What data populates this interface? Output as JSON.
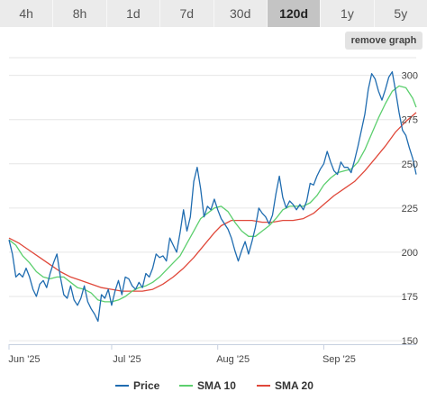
{
  "tabs": {
    "items": [
      "4h",
      "8h",
      "1d",
      "7d",
      "30d",
      "120d",
      "1y",
      "5y"
    ],
    "active_index": 5
  },
  "toolbar": {
    "remove_graph_label": "remove graph"
  },
  "colors": {
    "price": "#1f6cb0",
    "sma10": "#5ccf6e",
    "sma20": "#e0483a",
    "grid": "#e6e6e6",
    "axis": "#c7d0e0"
  },
  "chart_data": {
    "type": "line",
    "x_tick_labels": [
      "Jun '25",
      "Jul '25",
      "Aug '25",
      "Sep '25"
    ],
    "x_tick_dates": [
      "2025-06-01",
      "2025-07-01",
      "2025-08-01",
      "2025-09-01"
    ],
    "y_ticks": [
      150,
      175,
      200,
      225,
      250,
      275,
      300
    ],
    "ylim": [
      148,
      310
    ],
    "xlim": [
      "2025-06-01",
      "2025-09-28"
    ],
    "grid": "horizontal",
    "legend": "bottom",
    "series": [
      {
        "name": "Price",
        "color": "#1f6cb0",
        "points": [
          [
            "2025-06-01",
            207
          ],
          [
            "2025-06-02",
            199
          ],
          [
            "2025-06-03",
            186
          ],
          [
            "2025-06-04",
            188
          ],
          [
            "2025-06-05",
            186
          ],
          [
            "2025-06-06",
            191
          ],
          [
            "2025-06-07",
            186
          ],
          [
            "2025-06-08",
            179
          ],
          [
            "2025-06-09",
            175
          ],
          [
            "2025-06-10",
            182
          ],
          [
            "2025-06-11",
            184
          ],
          [
            "2025-06-12",
            180
          ],
          [
            "2025-06-13",
            188
          ],
          [
            "2025-06-14",
            194
          ],
          [
            "2025-06-15",
            199
          ],
          [
            "2025-06-16",
            186
          ],
          [
            "2025-06-17",
            176
          ],
          [
            "2025-06-18",
            174
          ],
          [
            "2025-06-19",
            181
          ],
          [
            "2025-06-20",
            173
          ],
          [
            "2025-06-21",
            170
          ],
          [
            "2025-06-22",
            174
          ],
          [
            "2025-06-23",
            181
          ],
          [
            "2025-06-24",
            172
          ],
          [
            "2025-06-25",
            168
          ],
          [
            "2025-06-26",
            165
          ],
          [
            "2025-06-27",
            161
          ],
          [
            "2025-06-28",
            176
          ],
          [
            "2025-06-29",
            174
          ],
          [
            "2025-06-30",
            179
          ],
          [
            "2025-07-01",
            170
          ],
          [
            "2025-07-02",
            178
          ],
          [
            "2025-07-03",
            184
          ],
          [
            "2025-07-04",
            176
          ],
          [
            "2025-07-05",
            186
          ],
          [
            "2025-07-06",
            185
          ],
          [
            "2025-07-07",
            181
          ],
          [
            "2025-07-08",
            179
          ],
          [
            "2025-07-09",
            183
          ],
          [
            "2025-07-10",
            180
          ],
          [
            "2025-07-11",
            188
          ],
          [
            "2025-07-12",
            186
          ],
          [
            "2025-07-13",
            191
          ],
          [
            "2025-07-14",
            199
          ],
          [
            "2025-07-15",
            197
          ],
          [
            "2025-07-16",
            198
          ],
          [
            "2025-07-17",
            195
          ],
          [
            "2025-07-18",
            208
          ],
          [
            "2025-07-19",
            204
          ],
          [
            "2025-07-20",
            200
          ],
          [
            "2025-07-21",
            211
          ],
          [
            "2025-07-22",
            224
          ],
          [
            "2025-07-23",
            212
          ],
          [
            "2025-07-24",
            220
          ],
          [
            "2025-07-25",
            240
          ],
          [
            "2025-07-26",
            248
          ],
          [
            "2025-07-27",
            236
          ],
          [
            "2025-07-28",
            220
          ],
          [
            "2025-07-29",
            226
          ],
          [
            "2025-07-30",
            224
          ],
          [
            "2025-07-31",
            230
          ],
          [
            "2025-08-01",
            224
          ],
          [
            "2025-08-02",
            219
          ],
          [
            "2025-08-03",
            216
          ],
          [
            "2025-08-04",
            213
          ],
          [
            "2025-08-05",
            208
          ],
          [
            "2025-08-06",
            201
          ],
          [
            "2025-08-07",
            195
          ],
          [
            "2025-08-08",
            201
          ],
          [
            "2025-08-09",
            206
          ],
          [
            "2025-08-10",
            199
          ],
          [
            "2025-08-11",
            206
          ],
          [
            "2025-08-12",
            214
          ],
          [
            "2025-08-13",
            225
          ],
          [
            "2025-08-14",
            222
          ],
          [
            "2025-08-15",
            220
          ],
          [
            "2025-08-16",
            216
          ],
          [
            "2025-08-17",
            221
          ],
          [
            "2025-08-18",
            233
          ],
          [
            "2025-08-19",
            243
          ],
          [
            "2025-08-20",
            231
          ],
          [
            "2025-08-21",
            225
          ],
          [
            "2025-08-22",
            229
          ],
          [
            "2025-08-23",
            227
          ],
          [
            "2025-08-24",
            224
          ],
          [
            "2025-08-25",
            227
          ],
          [
            "2025-08-26",
            224
          ],
          [
            "2025-08-27",
            229
          ],
          [
            "2025-08-28",
            239
          ],
          [
            "2025-08-29",
            238
          ],
          [
            "2025-08-30",
            243
          ],
          [
            "2025-08-31",
            247
          ],
          [
            "2025-09-01",
            250
          ],
          [
            "2025-09-02",
            257
          ],
          [
            "2025-09-03",
            251
          ],
          [
            "2025-09-04",
            246
          ],
          [
            "2025-09-05",
            244
          ],
          [
            "2025-09-06",
            251
          ],
          [
            "2025-09-07",
            248
          ],
          [
            "2025-09-08",
            248
          ],
          [
            "2025-09-09",
            245
          ],
          [
            "2025-09-10",
            252
          ],
          [
            "2025-09-11",
            260
          ],
          [
            "2025-09-12",
            269
          ],
          [
            "2025-09-13",
            278
          ],
          [
            "2025-09-14",
            292
          ],
          [
            "2025-09-15",
            301
          ],
          [
            "2025-09-16",
            298
          ],
          [
            "2025-09-17",
            291
          ],
          [
            "2025-09-18",
            286
          ],
          [
            "2025-09-19",
            292
          ],
          [
            "2025-09-20",
            299
          ],
          [
            "2025-09-21",
            302
          ],
          [
            "2025-09-22",
            291
          ],
          [
            "2025-09-23",
            279
          ],
          [
            "2025-09-24",
            269
          ],
          [
            "2025-09-25",
            266
          ],
          [
            "2025-09-26",
            259
          ],
          [
            "2025-09-27",
            253
          ],
          [
            "2025-09-28",
            244
          ]
        ]
      },
      {
        "name": "SMA 10",
        "color": "#5ccf6e",
        "points": [
          [
            "2025-06-01",
            207
          ],
          [
            "2025-06-03",
            204
          ],
          [
            "2025-06-05",
            198
          ],
          [
            "2025-06-07",
            194
          ],
          [
            "2025-06-09",
            189
          ],
          [
            "2025-06-11",
            186
          ],
          [
            "2025-06-13",
            185
          ],
          [
            "2025-06-15",
            186
          ],
          [
            "2025-06-17",
            186
          ],
          [
            "2025-06-19",
            183
          ],
          [
            "2025-06-21",
            180
          ],
          [
            "2025-06-23",
            179
          ],
          [
            "2025-06-25",
            177
          ],
          [
            "2025-06-27",
            173
          ],
          [
            "2025-06-29",
            172
          ],
          [
            "2025-07-01",
            172
          ],
          [
            "2025-07-03",
            173
          ],
          [
            "2025-07-05",
            175
          ],
          [
            "2025-07-07",
            178
          ],
          [
            "2025-07-09",
            180
          ],
          [
            "2025-07-11",
            181
          ],
          [
            "2025-07-13",
            183
          ],
          [
            "2025-07-15",
            186
          ],
          [
            "2025-07-17",
            190
          ],
          [
            "2025-07-19",
            194
          ],
          [
            "2025-07-21",
            198
          ],
          [
            "2025-07-23",
            205
          ],
          [
            "2025-07-25",
            212
          ],
          [
            "2025-07-27",
            219
          ],
          [
            "2025-07-29",
            222
          ],
          [
            "2025-07-31",
            225
          ],
          [
            "2025-08-02",
            226
          ],
          [
            "2025-08-04",
            223
          ],
          [
            "2025-08-06",
            217
          ],
          [
            "2025-08-08",
            212
          ],
          [
            "2025-08-10",
            209
          ],
          [
            "2025-08-12",
            209
          ],
          [
            "2025-08-14",
            212
          ],
          [
            "2025-08-16",
            215
          ],
          [
            "2025-08-18",
            219
          ],
          [
            "2025-08-20",
            224
          ],
          [
            "2025-08-22",
            226
          ],
          [
            "2025-08-24",
            226
          ],
          [
            "2025-08-26",
            226
          ],
          [
            "2025-08-28",
            228
          ],
          [
            "2025-08-30",
            232
          ],
          [
            "2025-09-01",
            238
          ],
          [
            "2025-09-03",
            242
          ],
          [
            "2025-09-05",
            245
          ],
          [
            "2025-09-07",
            246
          ],
          [
            "2025-09-09",
            247
          ],
          [
            "2025-09-11",
            251
          ],
          [
            "2025-09-13",
            258
          ],
          [
            "2025-09-15",
            267
          ],
          [
            "2025-09-17",
            276
          ],
          [
            "2025-09-19",
            284
          ],
          [
            "2025-09-21",
            291
          ],
          [
            "2025-09-23",
            294
          ],
          [
            "2025-09-25",
            293
          ],
          [
            "2025-09-27",
            287
          ],
          [
            "2025-09-28",
            282
          ]
        ]
      },
      {
        "name": "SMA 20",
        "color": "#e0483a",
        "points": [
          [
            "2025-06-01",
            208
          ],
          [
            "2025-06-04",
            205
          ],
          [
            "2025-06-07",
            201
          ],
          [
            "2025-06-10",
            197
          ],
          [
            "2025-06-13",
            193
          ],
          [
            "2025-06-16",
            189
          ],
          [
            "2025-06-19",
            186
          ],
          [
            "2025-06-22",
            184
          ],
          [
            "2025-06-25",
            182
          ],
          [
            "2025-06-28",
            180
          ],
          [
            "2025-07-01",
            179
          ],
          [
            "2025-07-04",
            178
          ],
          [
            "2025-07-07",
            178
          ],
          [
            "2025-07-10",
            178
          ],
          [
            "2025-07-13",
            179
          ],
          [
            "2025-07-16",
            182
          ],
          [
            "2025-07-19",
            186
          ],
          [
            "2025-07-22",
            191
          ],
          [
            "2025-07-25",
            197
          ],
          [
            "2025-07-28",
            204
          ],
          [
            "2025-07-31",
            211
          ],
          [
            "2025-08-02",
            215
          ],
          [
            "2025-08-05",
            218
          ],
          [
            "2025-08-08",
            218
          ],
          [
            "2025-08-11",
            218
          ],
          [
            "2025-08-14",
            217
          ],
          [
            "2025-08-17",
            217
          ],
          [
            "2025-08-20",
            218
          ],
          [
            "2025-08-23",
            218
          ],
          [
            "2025-08-26",
            219
          ],
          [
            "2025-08-29",
            222
          ],
          [
            "2025-09-01",
            227
          ],
          [
            "2025-09-04",
            232
          ],
          [
            "2025-09-07",
            236
          ],
          [
            "2025-09-10",
            240
          ],
          [
            "2025-09-13",
            246
          ],
          [
            "2025-09-16",
            253
          ],
          [
            "2025-09-19",
            260
          ],
          [
            "2025-09-22",
            268
          ],
          [
            "2025-09-25",
            274
          ],
          [
            "2025-09-28",
            279
          ]
        ]
      }
    ]
  }
}
